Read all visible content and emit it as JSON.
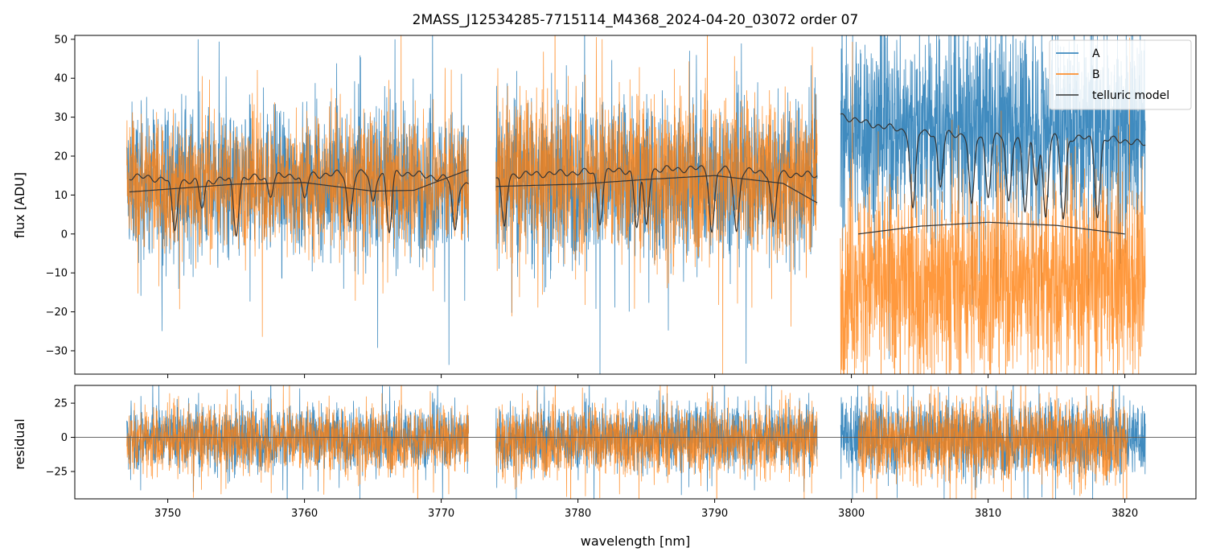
{
  "title": "2MASS_J12534285-7715114_M4368_2024-04-20_03072  order 07",
  "colors": {
    "A": "#1f77b4",
    "B": "#ff7f0e",
    "telluric": "#333333"
  },
  "chart_data": [
    {
      "type": "line",
      "panel": "flux",
      "xlabel": "",
      "ylabel": "flux [ADU]",
      "xlim": [
        3743.2,
        3825.2
      ],
      "ylim": [
        -36,
        51
      ],
      "yticks": [
        "−30",
        "−20",
        "−10",
        "0",
        "10",
        "20",
        "30",
        "40",
        "50"
      ],
      "ytick_values": [
        -30,
        -20,
        -10,
        0,
        10,
        20,
        30,
        40,
        50
      ],
      "xtick_values": [
        3750,
        3760,
        3770,
        3780,
        3790,
        3800,
        3810,
        3820
      ],
      "legend": {
        "placement": "top-right",
        "entries": [
          "A",
          "B",
          "telluric model"
        ]
      },
      "segments": [
        {
          "x_range": [
            3747.0,
            3772.0
          ],
          "A_level": 13,
          "A_spread": 22,
          "B_level": 13,
          "B_spread": 20
        },
        {
          "x_range": [
            3774.0,
            3797.5
          ],
          "A_level": 14,
          "A_spread": 24,
          "B_level": 15,
          "B_spread": 24
        },
        {
          "x_range": [
            3799.2,
            3821.5
          ],
          "A_level": 27,
          "A_spread": 30,
          "B_level": -12,
          "B_spread": 30
        }
      ],
      "telluric_model": {
        "A": {
          "baseline": [
            [
              3747.2,
              14.8
            ],
            [
              3752,
              13.5
            ],
            [
              3758,
              14.8
            ],
            [
              3763,
              15.5
            ],
            [
              3767,
              15.8
            ],
            [
              3770.5,
              14.2
            ],
            [
              3772,
              12.5
            ]
          ],
          "baseline2": [
            [
              3774,
              15
            ],
            [
              3780,
              15.8
            ],
            [
              3785,
              16.5
            ],
            [
              3789,
              16.8
            ],
            [
              3792,
              16.2
            ],
            [
              3795,
              15.5
            ],
            [
              3797.5,
              15
            ]
          ],
          "baseline3": [
            [
              3799.2,
              30.5
            ],
            [
              3801,
              28.5
            ],
            [
              3804,
              26.5
            ],
            [
              3808,
              25.5
            ],
            [
              3812,
              25
            ],
            [
              3816,
              24.8
            ],
            [
              3820,
              24
            ],
            [
              3821.5,
              23
            ]
          ],
          "lines": [
            [
              3750.5,
              0.5
            ],
            [
              3752.5,
              7
            ],
            [
              3755,
              0.3
            ],
            [
              3757.5,
              10
            ],
            [
              3760,
              9
            ],
            [
              3763.3,
              3
            ],
            [
              3765,
              8
            ],
            [
              3766.2,
              0.5
            ],
            [
              3771,
              0.5
            ],
            [
              3774.6,
              1.5
            ],
            [
              3781.6,
              3
            ],
            [
              3784.3,
              2
            ],
            [
              3785.0,
              2.5
            ],
            [
              3789.8,
              0.5
            ],
            [
              3791.6,
              0.5
            ],
            [
              3794.3,
              2.5
            ],
            [
              3804.5,
              6
            ],
            [
              3806.5,
              12
            ],
            [
              3808.8,
              7
            ],
            [
              3810,
              10
            ],
            [
              3811.5,
              8
            ],
            [
              3812.7,
              6
            ],
            [
              3813.5,
              13
            ],
            [
              3814.2,
              4.5
            ],
            [
              3815.5,
              4
            ],
            [
              3818,
              5
            ]
          ]
        },
        "B_smooth": [
          [
            [
              3747.2,
              10.8
            ],
            [
              3755,
              12.8
            ],
            [
              3760,
              13.2
            ],
            [
              3765,
              11
            ],
            [
              3768,
              11.2
            ],
            [
              3772,
              16.5
            ]
          ],
          [
            [
              3774,
              12.2
            ],
            [
              3780,
              12.8
            ],
            [
              3785,
              14
            ],
            [
              3790,
              15
            ],
            [
              3795,
              13
            ],
            [
              3797.5,
              8
            ]
          ],
          [
            [
              3800.5,
              0
            ],
            [
              3805,
              2
            ],
            [
              3810,
              3
            ],
            [
              3815,
              2.2
            ],
            [
              3820,
              0
            ]
          ]
        ]
      }
    },
    {
      "type": "line",
      "panel": "residual",
      "xlabel": "wavelength [nm]",
      "ylabel": "residual",
      "xlim": [
        3743.2,
        3825.2
      ],
      "ylim": [
        -45,
        38
      ],
      "yticks": [
        "25",
        "0",
        "−25"
      ],
      "ytick_values": [
        25,
        0,
        -25
      ],
      "xticks": [
        "3750",
        "3760",
        "3770",
        "3780",
        "3790",
        "3800",
        "3810",
        "3820"
      ],
      "xtick_values": [
        3750,
        3760,
        3770,
        3780,
        3790,
        3800,
        3810,
        3820
      ],
      "zero_line": 0,
      "segments": [
        {
          "x_range": [
            3747.0,
            3772.0
          ],
          "A_spread": 28,
          "B_spread": 28
        },
        {
          "x_range": [
            3774.0,
            3797.5
          ],
          "A_spread": 28,
          "B_spread": 30
        },
        {
          "x_range": [
            3799.2,
            3821.5
          ],
          "A_spread": 32,
          "B_spread": 34,
          "B_start": 3800.5,
          "B_end": 3820.2
        }
      ]
    }
  ]
}
